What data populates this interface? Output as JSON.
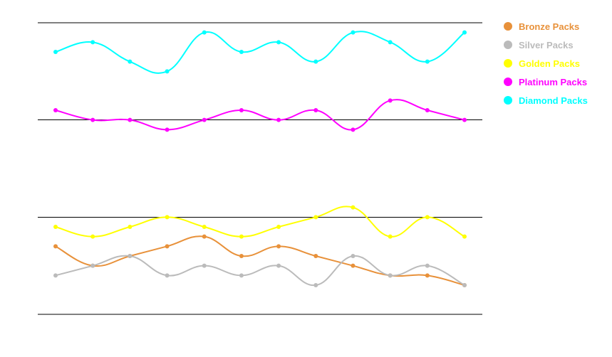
{
  "chart_data": {
    "type": "line",
    "x": [
      1,
      2,
      3,
      4,
      5,
      6,
      7,
      8,
      9,
      10,
      11,
      12
    ],
    "ylim": [
      0,
      30
    ],
    "gridlines": [
      0,
      10,
      20,
      30
    ],
    "grid": "horizontal",
    "legend": "right",
    "series": [
      {
        "name": "Bronze Packs",
        "color": "#E8913A",
        "values": [
          7,
          5,
          6,
          7,
          8,
          6,
          7,
          6,
          5,
          4,
          4,
          3
        ]
      },
      {
        "name": "Silver Packs",
        "color": "#BBBBBB",
        "values": [
          4,
          5,
          6,
          4,
          5,
          4,
          5,
          3,
          6,
          4,
          5,
          3
        ]
      },
      {
        "name": "Golden Packs",
        "color": "#FFFF00",
        "values": [
          9,
          8,
          9,
          10,
          9,
          8,
          9,
          10,
          11,
          8,
          10,
          8
        ]
      },
      {
        "name": "Platinum Packs",
        "color": "#FF00FF",
        "values": [
          21,
          20,
          20,
          19,
          20,
          21,
          20,
          21,
          19,
          22,
          21,
          20
        ]
      },
      {
        "name": "Diamond Packs",
        "color": "#00FFFF",
        "values": [
          27,
          28,
          26,
          25,
          29,
          27,
          28,
          26,
          29,
          28,
          26,
          29
        ]
      }
    ]
  }
}
